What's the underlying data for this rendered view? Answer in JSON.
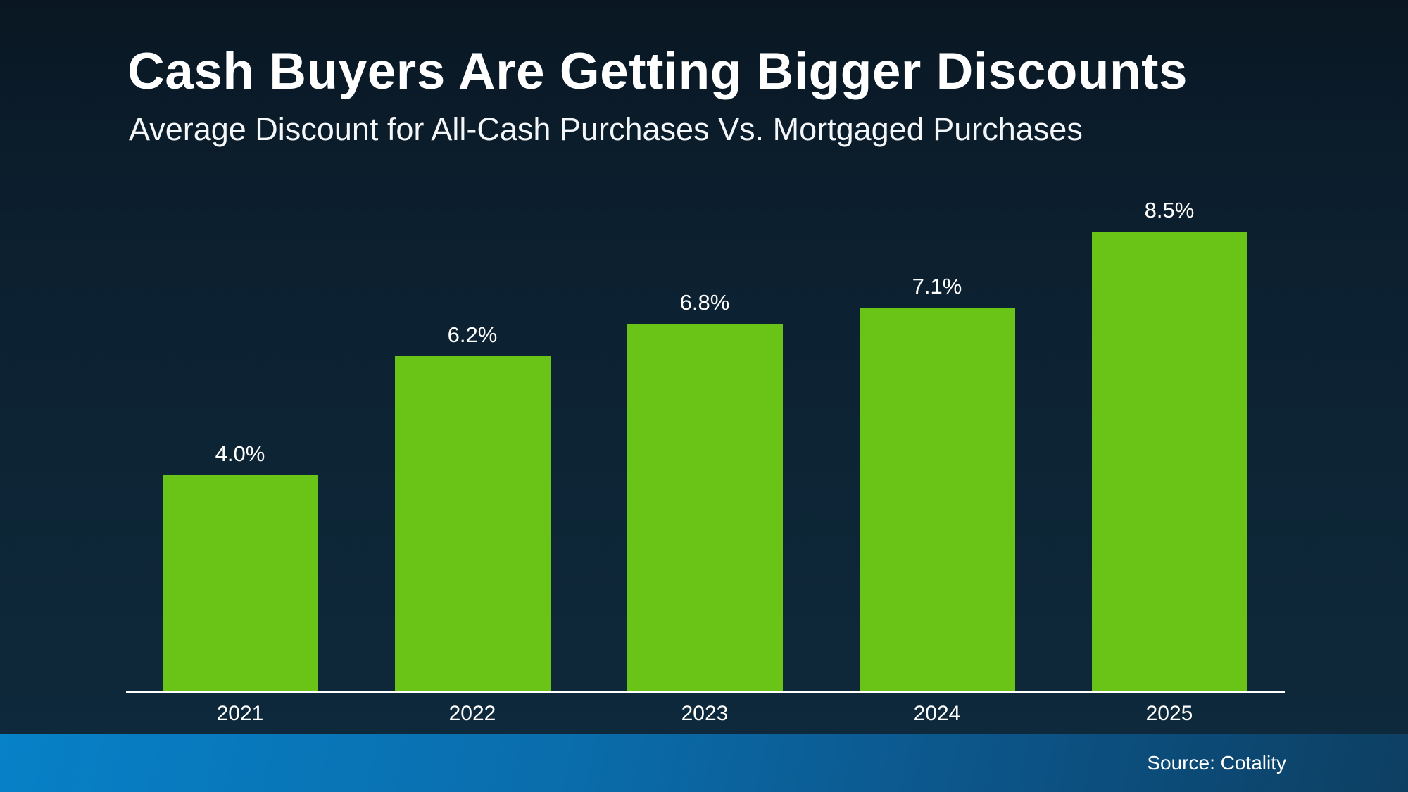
{
  "header": {
    "title": "Cash Buyers Are Getting Bigger Discounts",
    "subtitle": "Average Discount for All-Cash Purchases Vs. Mortgaged Purchases"
  },
  "footer": {
    "source_label": "Source: Cotality"
  },
  "colors": {
    "background_top": "#0a1723",
    "background_bottom": "#0e2a3d",
    "bar_fill": "#69c417",
    "axis_line": "#ffffff",
    "text": "#ffffff",
    "footer_gradient_left": "#0781c8",
    "footer_gradient_right": "#0d3f62"
  },
  "chart_data": {
    "type": "bar",
    "title": "Cash Buyers Are Getting Bigger Discounts",
    "subtitle": "Average Discount for All-Cash Purchases Vs. Mortgaged Purchases",
    "categories": [
      "2021",
      "2022",
      "2023",
      "2024",
      "2025"
    ],
    "values": [
      4.0,
      6.2,
      6.8,
      7.1,
      8.5
    ],
    "value_labels": [
      "4.0%",
      "6.2%",
      "6.8%",
      "7.1%",
      "8.5%"
    ],
    "xlabel": "",
    "ylabel": "",
    "ylim": [
      0,
      9
    ],
    "grid": false,
    "legend": "none",
    "unit": "%"
  }
}
